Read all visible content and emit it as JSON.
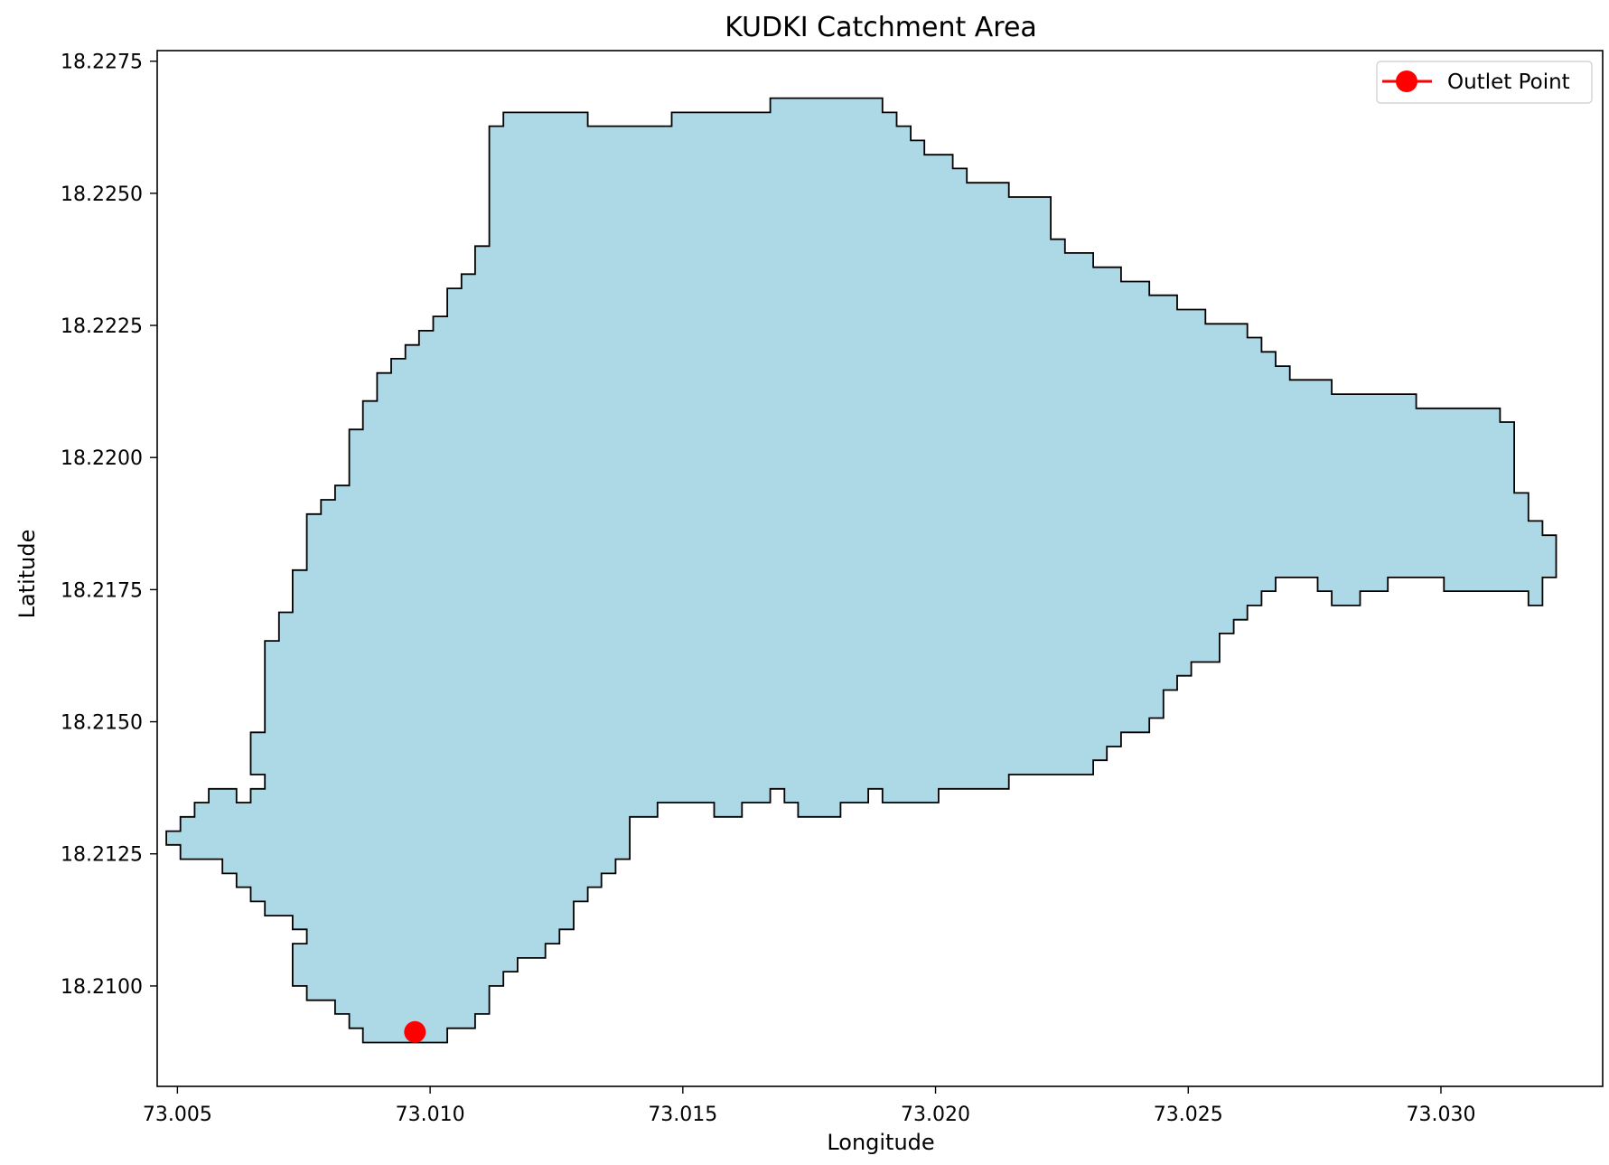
{
  "chart_data": {
    "type": "map",
    "title": "KUDKI Catchment Area",
    "xlabel": "Longitude",
    "ylabel": "Latitude",
    "xlim": [
      73.0046,
      73.0332
    ],
    "ylim": [
      18.2081,
      18.2277
    ],
    "grid": false,
    "legend_position": "top-right",
    "xticks": [
      73.005,
      73.01,
      73.015,
      73.02,
      73.025,
      73.03
    ],
    "xtick_labels": [
      "73.005",
      "73.010",
      "73.015",
      "73.020",
      "73.025",
      "73.030"
    ],
    "yticks": [
      18.21,
      18.2125,
      18.215,
      18.2175,
      18.22,
      18.2225,
      18.225,
      18.2275
    ],
    "ytick_labels": [
      "18.2100",
      "18.2125",
      "18.2150",
      "18.2175",
      "18.2200",
      "18.2225",
      "18.2250",
      "18.2275"
    ],
    "catchment": {
      "fill_color": "#add8e6",
      "edge_color": "#000000",
      "boundary": [
        [
          73.00978,
          18.20893
        ],
        [
          73.01034,
          18.20893
        ],
        [
          73.01034,
          18.2092
        ],
        [
          73.01089,
          18.2092
        ],
        [
          73.01089,
          18.20947
        ],
        [
          73.01117,
          18.20947
        ],
        [
          73.01117,
          18.21
        ],
        [
          73.01145,
          18.21
        ],
        [
          73.01145,
          18.21027
        ],
        [
          73.01173,
          18.21027
        ],
        [
          73.01173,
          18.21053
        ],
        [
          73.01228,
          18.21053
        ],
        [
          73.01228,
          18.2108
        ],
        [
          73.01256,
          18.2108
        ],
        [
          73.01256,
          18.21107
        ],
        [
          73.01284,
          18.21107
        ],
        [
          73.01284,
          18.2116
        ],
        [
          73.01312,
          18.2116
        ],
        [
          73.01312,
          18.21187
        ],
        [
          73.01339,
          18.21187
        ],
        [
          73.01339,
          18.21213
        ],
        [
          73.01367,
          18.21213
        ],
        [
          73.01367,
          18.2124
        ],
        [
          73.01395,
          18.2124
        ],
        [
          73.01395,
          18.2132
        ],
        [
          73.0145,
          18.2132
        ],
        [
          73.0145,
          18.21347
        ],
        [
          73.01562,
          18.21347
        ],
        [
          73.01562,
          18.2132
        ],
        [
          73.01617,
          18.2132
        ],
        [
          73.01617,
          18.21347
        ],
        [
          73.01673,
          18.21347
        ],
        [
          73.01673,
          18.21373
        ],
        [
          73.01701,
          18.21373
        ],
        [
          73.01701,
          18.21347
        ],
        [
          73.01728,
          18.21347
        ],
        [
          73.01728,
          18.2132
        ],
        [
          73.01812,
          18.2132
        ],
        [
          73.01812,
          18.21347
        ],
        [
          73.01867,
          18.21347
        ],
        [
          73.01867,
          18.21373
        ],
        [
          73.01895,
          18.21373
        ],
        [
          73.01895,
          18.21347
        ],
        [
          73.02006,
          18.21347
        ],
        [
          73.02006,
          18.21373
        ],
        [
          73.02145,
          18.21373
        ],
        [
          73.02145,
          18.214
        ],
        [
          73.02312,
          18.214
        ],
        [
          73.02312,
          18.21427
        ],
        [
          73.02339,
          18.21427
        ],
        [
          73.02339,
          18.21453
        ],
        [
          73.02367,
          18.21453
        ],
        [
          73.02367,
          18.2148
        ],
        [
          73.02423,
          18.2148
        ],
        [
          73.02423,
          18.21507
        ],
        [
          73.02451,
          18.21507
        ],
        [
          73.02451,
          18.2156
        ],
        [
          73.02478,
          18.2156
        ],
        [
          73.02478,
          18.21587
        ],
        [
          73.02506,
          18.21587
        ],
        [
          73.02506,
          18.21613
        ],
        [
          73.02562,
          18.21613
        ],
        [
          73.02562,
          18.21667
        ],
        [
          73.0259,
          18.21667
        ],
        [
          73.0259,
          18.21693
        ],
        [
          73.02617,
          18.21693
        ],
        [
          73.02617,
          18.2172
        ],
        [
          73.02645,
          18.2172
        ],
        [
          73.02645,
          18.21747
        ],
        [
          73.02673,
          18.21747
        ],
        [
          73.02673,
          18.21773
        ],
        [
          73.02756,
          18.21773
        ],
        [
          73.02756,
          18.21747
        ],
        [
          73.02784,
          18.21747
        ],
        [
          73.02784,
          18.2172
        ],
        [
          73.0284,
          18.2172
        ],
        [
          73.0284,
          18.21747
        ],
        [
          73.02895,
          18.21747
        ],
        [
          73.02895,
          18.21773
        ],
        [
          73.03006,
          18.21773
        ],
        [
          73.03006,
          18.21747
        ],
        [
          73.03173,
          18.21747
        ],
        [
          73.03173,
          18.2172
        ],
        [
          73.03201,
          18.2172
        ],
        [
          73.03201,
          18.21773
        ],
        [
          73.03228,
          18.21773
        ],
        [
          73.03228,
          18.21853
        ],
        [
          73.03201,
          18.21853
        ],
        [
          73.03201,
          18.2188
        ],
        [
          73.03173,
          18.2188
        ],
        [
          73.03173,
          18.21933
        ],
        [
          73.03145,
          18.21933
        ],
        [
          73.03145,
          18.22067
        ],
        [
          73.03117,
          18.22067
        ],
        [
          73.03117,
          18.22093
        ],
        [
          73.02951,
          18.22093
        ],
        [
          73.02951,
          18.2212
        ],
        [
          73.02784,
          18.2212
        ],
        [
          73.02784,
          18.22147
        ],
        [
          73.02701,
          18.22147
        ],
        [
          73.02701,
          18.22173
        ],
        [
          73.02673,
          18.22173
        ],
        [
          73.02673,
          18.222
        ],
        [
          73.02645,
          18.222
        ],
        [
          73.02645,
          18.22227
        ],
        [
          73.02617,
          18.22227
        ],
        [
          73.02617,
          18.22253
        ],
        [
          73.02534,
          18.22253
        ],
        [
          73.02534,
          18.2228
        ],
        [
          73.02478,
          18.2228
        ],
        [
          73.02478,
          18.22307
        ],
        [
          73.02423,
          18.22307
        ],
        [
          73.02423,
          18.22333
        ],
        [
          73.02367,
          18.22333
        ],
        [
          73.02367,
          18.2236
        ],
        [
          73.02312,
          18.2236
        ],
        [
          73.02312,
          18.22387
        ],
        [
          73.02256,
          18.22387
        ],
        [
          73.02256,
          18.22413
        ],
        [
          73.02228,
          18.22413
        ],
        [
          73.02228,
          18.22493
        ],
        [
          73.02145,
          18.22493
        ],
        [
          73.02145,
          18.2252
        ],
        [
          73.02062,
          18.2252
        ],
        [
          73.02062,
          18.22547
        ],
        [
          73.02034,
          18.22547
        ],
        [
          73.02034,
          18.22573
        ],
        [
          73.01978,
          18.22573
        ],
        [
          73.01978,
          18.226
        ],
        [
          73.01951,
          18.226
        ],
        [
          73.01951,
          18.22627
        ],
        [
          73.01923,
          18.22627
        ],
        [
          73.01923,
          18.22653
        ],
        [
          73.01895,
          18.22653
        ],
        [
          73.01895,
          18.2268
        ],
        [
          73.01673,
          18.2268
        ],
        [
          73.01673,
          18.22653
        ],
        [
          73.01478,
          18.22653
        ],
        [
          73.01478,
          18.22627
        ],
        [
          73.01312,
          18.22627
        ],
        [
          73.01312,
          18.22653
        ],
        [
          73.01145,
          18.22653
        ],
        [
          73.01145,
          18.22627
        ],
        [
          73.01117,
          18.22627
        ],
        [
          73.01117,
          18.224
        ],
        [
          73.01089,
          18.224
        ],
        [
          73.01089,
          18.22347
        ],
        [
          73.01062,
          18.22347
        ],
        [
          73.01062,
          18.2232
        ],
        [
          73.01034,
          18.2232
        ],
        [
          73.01034,
          18.22267
        ],
        [
          73.01006,
          18.22267
        ],
        [
          73.01006,
          18.2224
        ],
        [
          73.00978,
          18.2224
        ],
        [
          73.00978,
          18.22213
        ],
        [
          73.00951,
          18.22213
        ],
        [
          73.00951,
          18.22187
        ],
        [
          73.00923,
          18.22187
        ],
        [
          73.00923,
          18.2216
        ],
        [
          73.00895,
          18.2216
        ],
        [
          73.00895,
          18.22107
        ],
        [
          73.00867,
          18.22107
        ],
        [
          73.00867,
          18.22053
        ],
        [
          73.0084,
          18.22053
        ],
        [
          73.0084,
          18.21947
        ],
        [
          73.00812,
          18.21947
        ],
        [
          73.00812,
          18.2192
        ],
        [
          73.00784,
          18.2192
        ],
        [
          73.00784,
          18.21893
        ],
        [
          73.00756,
          18.21893
        ],
        [
          73.00756,
          18.21787
        ],
        [
          73.00728,
          18.21787
        ],
        [
          73.00728,
          18.21707
        ],
        [
          73.00701,
          18.21707
        ],
        [
          73.00701,
          18.21653
        ],
        [
          73.00673,
          18.21653
        ],
        [
          73.00673,
          18.2148
        ],
        [
          73.00645,
          18.2148
        ],
        [
          73.00645,
          18.214
        ],
        [
          73.00673,
          18.214
        ],
        [
          73.00673,
          18.21373
        ],
        [
          73.00645,
          18.21373
        ],
        [
          73.00645,
          18.21347
        ],
        [
          73.00617,
          18.21347
        ],
        [
          73.00617,
          18.21373
        ],
        [
          73.00562,
          18.21373
        ],
        [
          73.00562,
          18.21347
        ],
        [
          73.00534,
          18.21347
        ],
        [
          73.00534,
          18.2132
        ],
        [
          73.00506,
          18.2132
        ],
        [
          73.00506,
          18.21293
        ],
        [
          73.00478,
          18.21293
        ],
        [
          73.00478,
          18.21267
        ],
        [
          73.00506,
          18.21267
        ],
        [
          73.00506,
          18.2124
        ],
        [
          73.00589,
          18.2124
        ],
        [
          73.00589,
          18.21213
        ],
        [
          73.00617,
          18.21213
        ],
        [
          73.00617,
          18.21187
        ],
        [
          73.00645,
          18.21187
        ],
        [
          73.00645,
          18.2116
        ],
        [
          73.00673,
          18.2116
        ],
        [
          73.00673,
          18.21133
        ],
        [
          73.00728,
          18.21133
        ],
        [
          73.00728,
          18.21107
        ],
        [
          73.00756,
          18.21107
        ],
        [
          73.00756,
          18.2108
        ],
        [
          73.00728,
          18.2108
        ],
        [
          73.00728,
          18.21
        ],
        [
          73.00756,
          18.21
        ],
        [
          73.00756,
          18.20973
        ],
        [
          73.00812,
          18.20973
        ],
        [
          73.00812,
          18.20947
        ],
        [
          73.0084,
          18.20947
        ],
        [
          73.0084,
          18.2092
        ],
        [
          73.00867,
          18.2092
        ],
        [
          73.00867,
          18.20893
        ],
        [
          73.00978,
          18.20893
        ]
      ]
    },
    "series": [
      {
        "name": "Outlet Point",
        "type": "scatter",
        "color": "#ff0000",
        "points": [
          [
            73.0097,
            18.20913
          ]
        ]
      }
    ]
  }
}
